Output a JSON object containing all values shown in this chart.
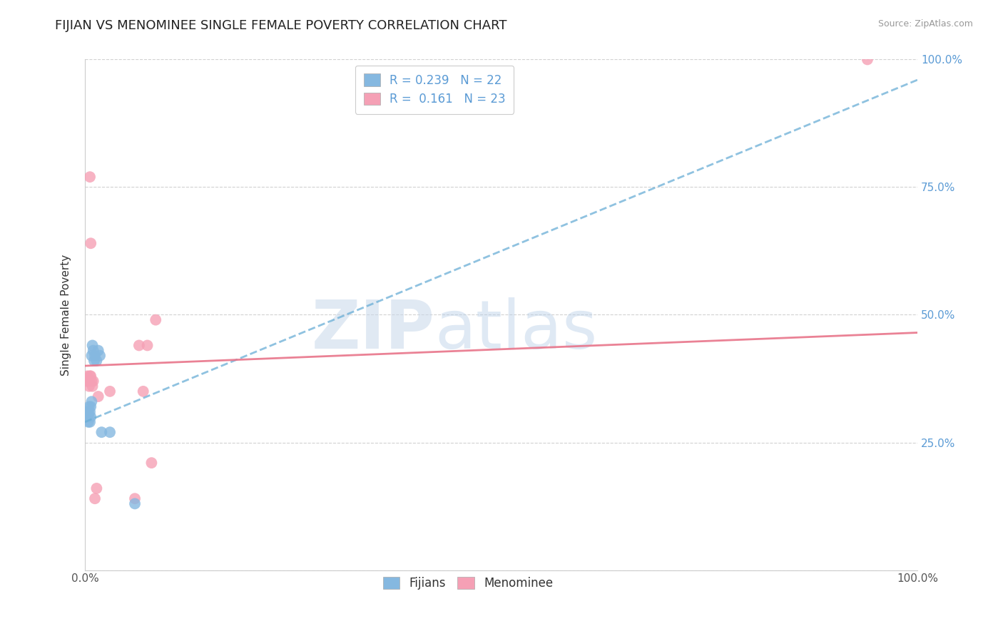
{
  "title": "FIJIAN VS MENOMINEE SINGLE FEMALE POVERTY CORRELATION CHART",
  "source_text": "Source: ZipAtlas.com",
  "ylabel": "Single Female Poverty",
  "xlim": [
    0,
    1
  ],
  "ylim": [
    0,
    1
  ],
  "fijian_color": "#85b8e0",
  "menominee_color": "#f5a0b5",
  "fijian_line_color": "#6aaed6",
  "menominee_line_color": "#e8748a",
  "R_fijian": 0.239,
  "N_fijian": 22,
  "R_menominee": 0.161,
  "N_menominee": 23,
  "fijian_x": [
    0.002,
    0.003,
    0.004,
    0.004,
    0.005,
    0.005,
    0.006,
    0.006,
    0.007,
    0.007,
    0.008,
    0.008,
    0.009,
    0.01,
    0.011,
    0.012,
    0.014,
    0.016,
    0.018,
    0.02,
    0.03,
    0.06
  ],
  "fijian_y": [
    0.3,
    0.31,
    0.29,
    0.31,
    0.3,
    0.32,
    0.29,
    0.31,
    0.3,
    0.32,
    0.33,
    0.42,
    0.44,
    0.43,
    0.41,
    0.42,
    0.41,
    0.43,
    0.42,
    0.27,
    0.27,
    0.13
  ],
  "menominee_x": [
    0.002,
    0.003,
    0.004,
    0.005,
    0.005,
    0.006,
    0.006,
    0.007,
    0.007,
    0.008,
    0.009,
    0.01,
    0.012,
    0.014,
    0.016,
    0.03,
    0.06,
    0.065,
    0.07,
    0.075,
    0.08,
    0.085,
    0.94
  ],
  "menominee_y": [
    0.37,
    0.38,
    0.37,
    0.36,
    0.37,
    0.38,
    0.77,
    0.38,
    0.64,
    0.37,
    0.36,
    0.37,
    0.14,
    0.16,
    0.34,
    0.35,
    0.14,
    0.44,
    0.35,
    0.44,
    0.21,
    0.49,
    1.0
  ],
  "fijian_line_x0": 0.0,
  "fijian_line_x1": 1.0,
  "fijian_line_y0": 0.29,
  "fijian_line_y1": 0.96,
  "menominee_line_x0": 0.0,
  "menominee_line_x1": 1.0,
  "menominee_line_y0": 0.4,
  "menominee_line_y1": 0.465,
  "watermark_zip": "ZIP",
  "watermark_atlas": "atlas",
  "background_color": "#ffffff",
  "grid_color": "#cccccc",
  "title_fontsize": 13,
  "axis_label_fontsize": 11,
  "tick_fontsize": 11,
  "legend_fontsize": 12,
  "right_tick_color": "#5b9bd5",
  "source_color": "#999999"
}
